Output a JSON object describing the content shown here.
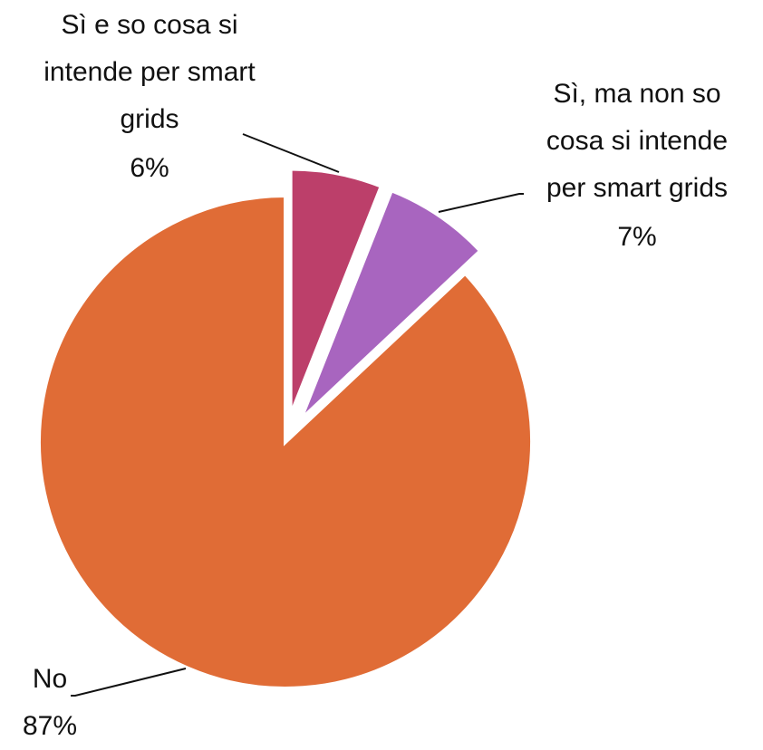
{
  "chart_data": {
    "type": "pie",
    "categories": [
      "Sì e so cosa si intende per smart grids",
      "Sì, ma non so cosa si intende per smart grids",
      "No"
    ],
    "values": [
      6,
      7,
      87
    ],
    "value_labels": [
      "6%",
      "7%",
      "87%"
    ],
    "colors": [
      "#bc3f6a",
      "#a865bf",
      "#e06c36"
    ]
  }
}
